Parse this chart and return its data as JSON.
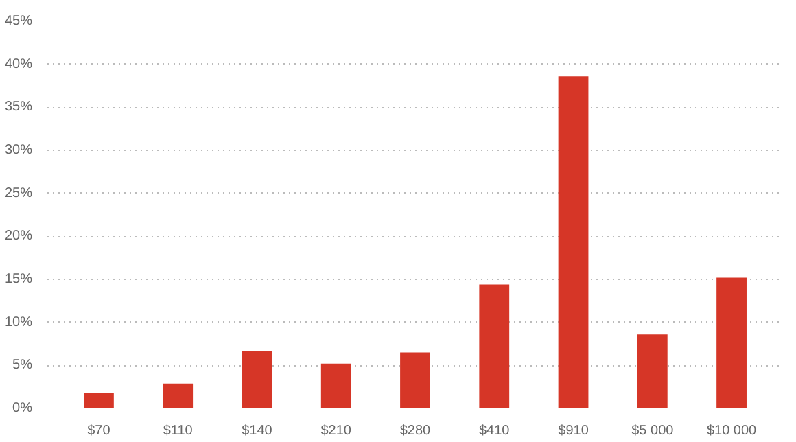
{
  "chart_data": {
    "type": "bar",
    "categories": [
      "$70",
      "$110",
      "$140",
      "$210",
      "$280",
      "$410",
      "$910",
      "$5 000",
      "$10 000"
    ],
    "values": [
      1.8,
      2.9,
      6.7,
      5.2,
      6.5,
      14.4,
      38.6,
      8.6,
      15.2
    ],
    "color": "#d63627",
    "ylim": [
      0,
      45
    ],
    "yticks": [
      {
        "value": 0,
        "label": "0%"
      },
      {
        "value": 5,
        "label": "5%"
      },
      {
        "value": 10,
        "label": "10%"
      },
      {
        "value": 15,
        "label": "15%"
      },
      {
        "value": 20,
        "label": "20%"
      },
      {
        "value": 25,
        "label": "25%"
      },
      {
        "value": 30,
        "label": "30%"
      },
      {
        "value": 35,
        "label": "35%"
      },
      {
        "value": 40,
        "label": "40%"
      },
      {
        "value": 45,
        "label": "45%"
      }
    ],
    "grid": "y"
  }
}
